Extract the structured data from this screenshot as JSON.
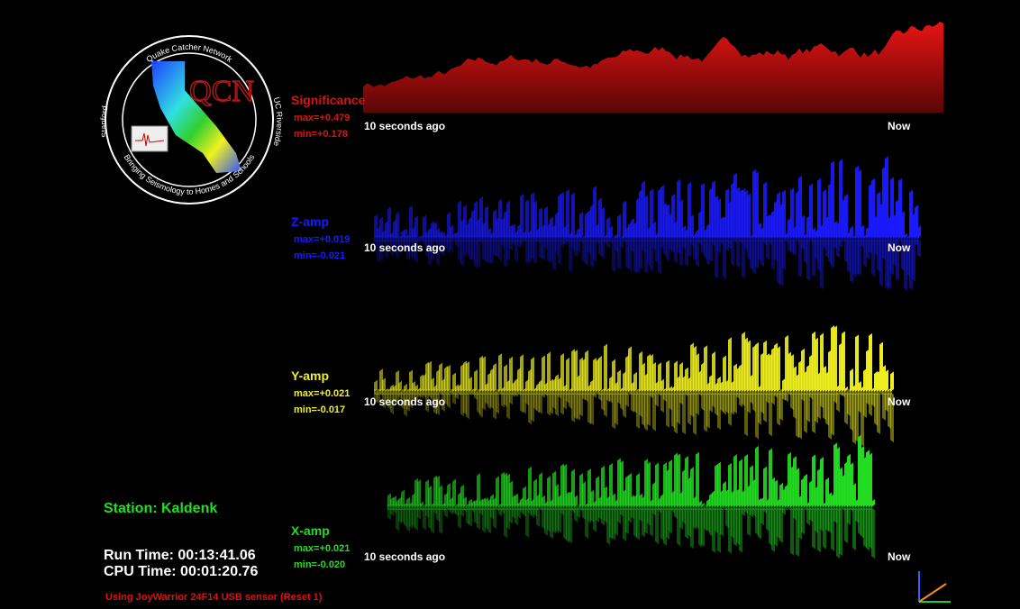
{
  "logo": {
    "title": "Quake Catcher Network",
    "left": "Stanford",
    "right": "UC Riverside",
    "bottom": "Bringing Seismology to Homes and Schools",
    "mark": "QCN"
  },
  "panels": [
    {
      "label": "Significance",
      "max": "max=+0.479",
      "min": "min=+0.178",
      "start": "10 seconds ago",
      "end": "Now",
      "color": "#e01010"
    },
    {
      "label": "Z-amp",
      "max": "max=+0.019",
      "min": "min=-0.021",
      "start": "10 seconds ago",
      "end": "Now",
      "color": "#1a1aff"
    },
    {
      "label": "Y-amp",
      "max": "max=+0.021",
      "min": "min=-0.017",
      "start": "10 seconds ago",
      "end": "Now",
      "color": "#f0f020"
    },
    {
      "label": "X-amp",
      "max": "max=+0.021",
      "min": "min=-0.020",
      "start": "10 seconds ago",
      "end": "Now",
      "color": "#22dd22"
    }
  ],
  "status": {
    "station": "Station: Kaldenk",
    "run_time": "Run Time: 00:13:41.06",
    "cpu_time": "CPU Time: 00:01:20.76",
    "sensor": "Using JoyWarrior 24F14 USB sensor (Reset 1)"
  }
}
